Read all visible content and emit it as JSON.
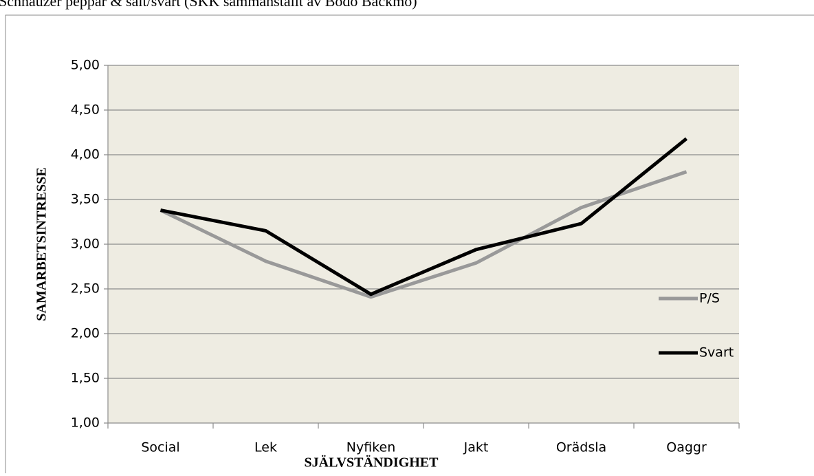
{
  "chart_data": {
    "type": "line",
    "title": "Schnauzer peppar & salt/svart (SKK sammanställt av Bodo Bäckmo)",
    "x_label": "SJÄLVSTÄNDIGHET",
    "y_label": "SAMARBETSINTRESSE",
    "categories": [
      "Social",
      "Lek",
      "Nyfiken",
      "Jakt",
      "Orädsla",
      "Oaggr"
    ],
    "series": [
      {
        "name": "P/S",
        "color": "#999999",
        "values": [
          3.38,
          2.81,
          2.41,
          2.79,
          3.41,
          3.81
        ]
      },
      {
        "name": "Svart",
        "color": "#000000",
        "values": [
          3.38,
          3.15,
          2.44,
          2.94,
          3.23,
          4.18
        ]
      }
    ],
    "ylim": [
      1,
      5
    ],
    "yticks": [
      {
        "value": 1,
        "label": "1,00"
      },
      {
        "value": 1.5,
        "label": "1,50"
      },
      {
        "value": 2,
        "label": "2,00"
      },
      {
        "value": 2.5,
        "label": "2,50"
      },
      {
        "value": 3,
        "label": "3,00"
      },
      {
        "value": 3.5,
        "label": "3,50"
      },
      {
        "value": 4,
        "label": "4,00"
      },
      {
        "value": 4.5,
        "label": "4,50"
      },
      {
        "value": 5,
        "label": "5,00"
      }
    ],
    "grid": true,
    "legend": "right"
  }
}
